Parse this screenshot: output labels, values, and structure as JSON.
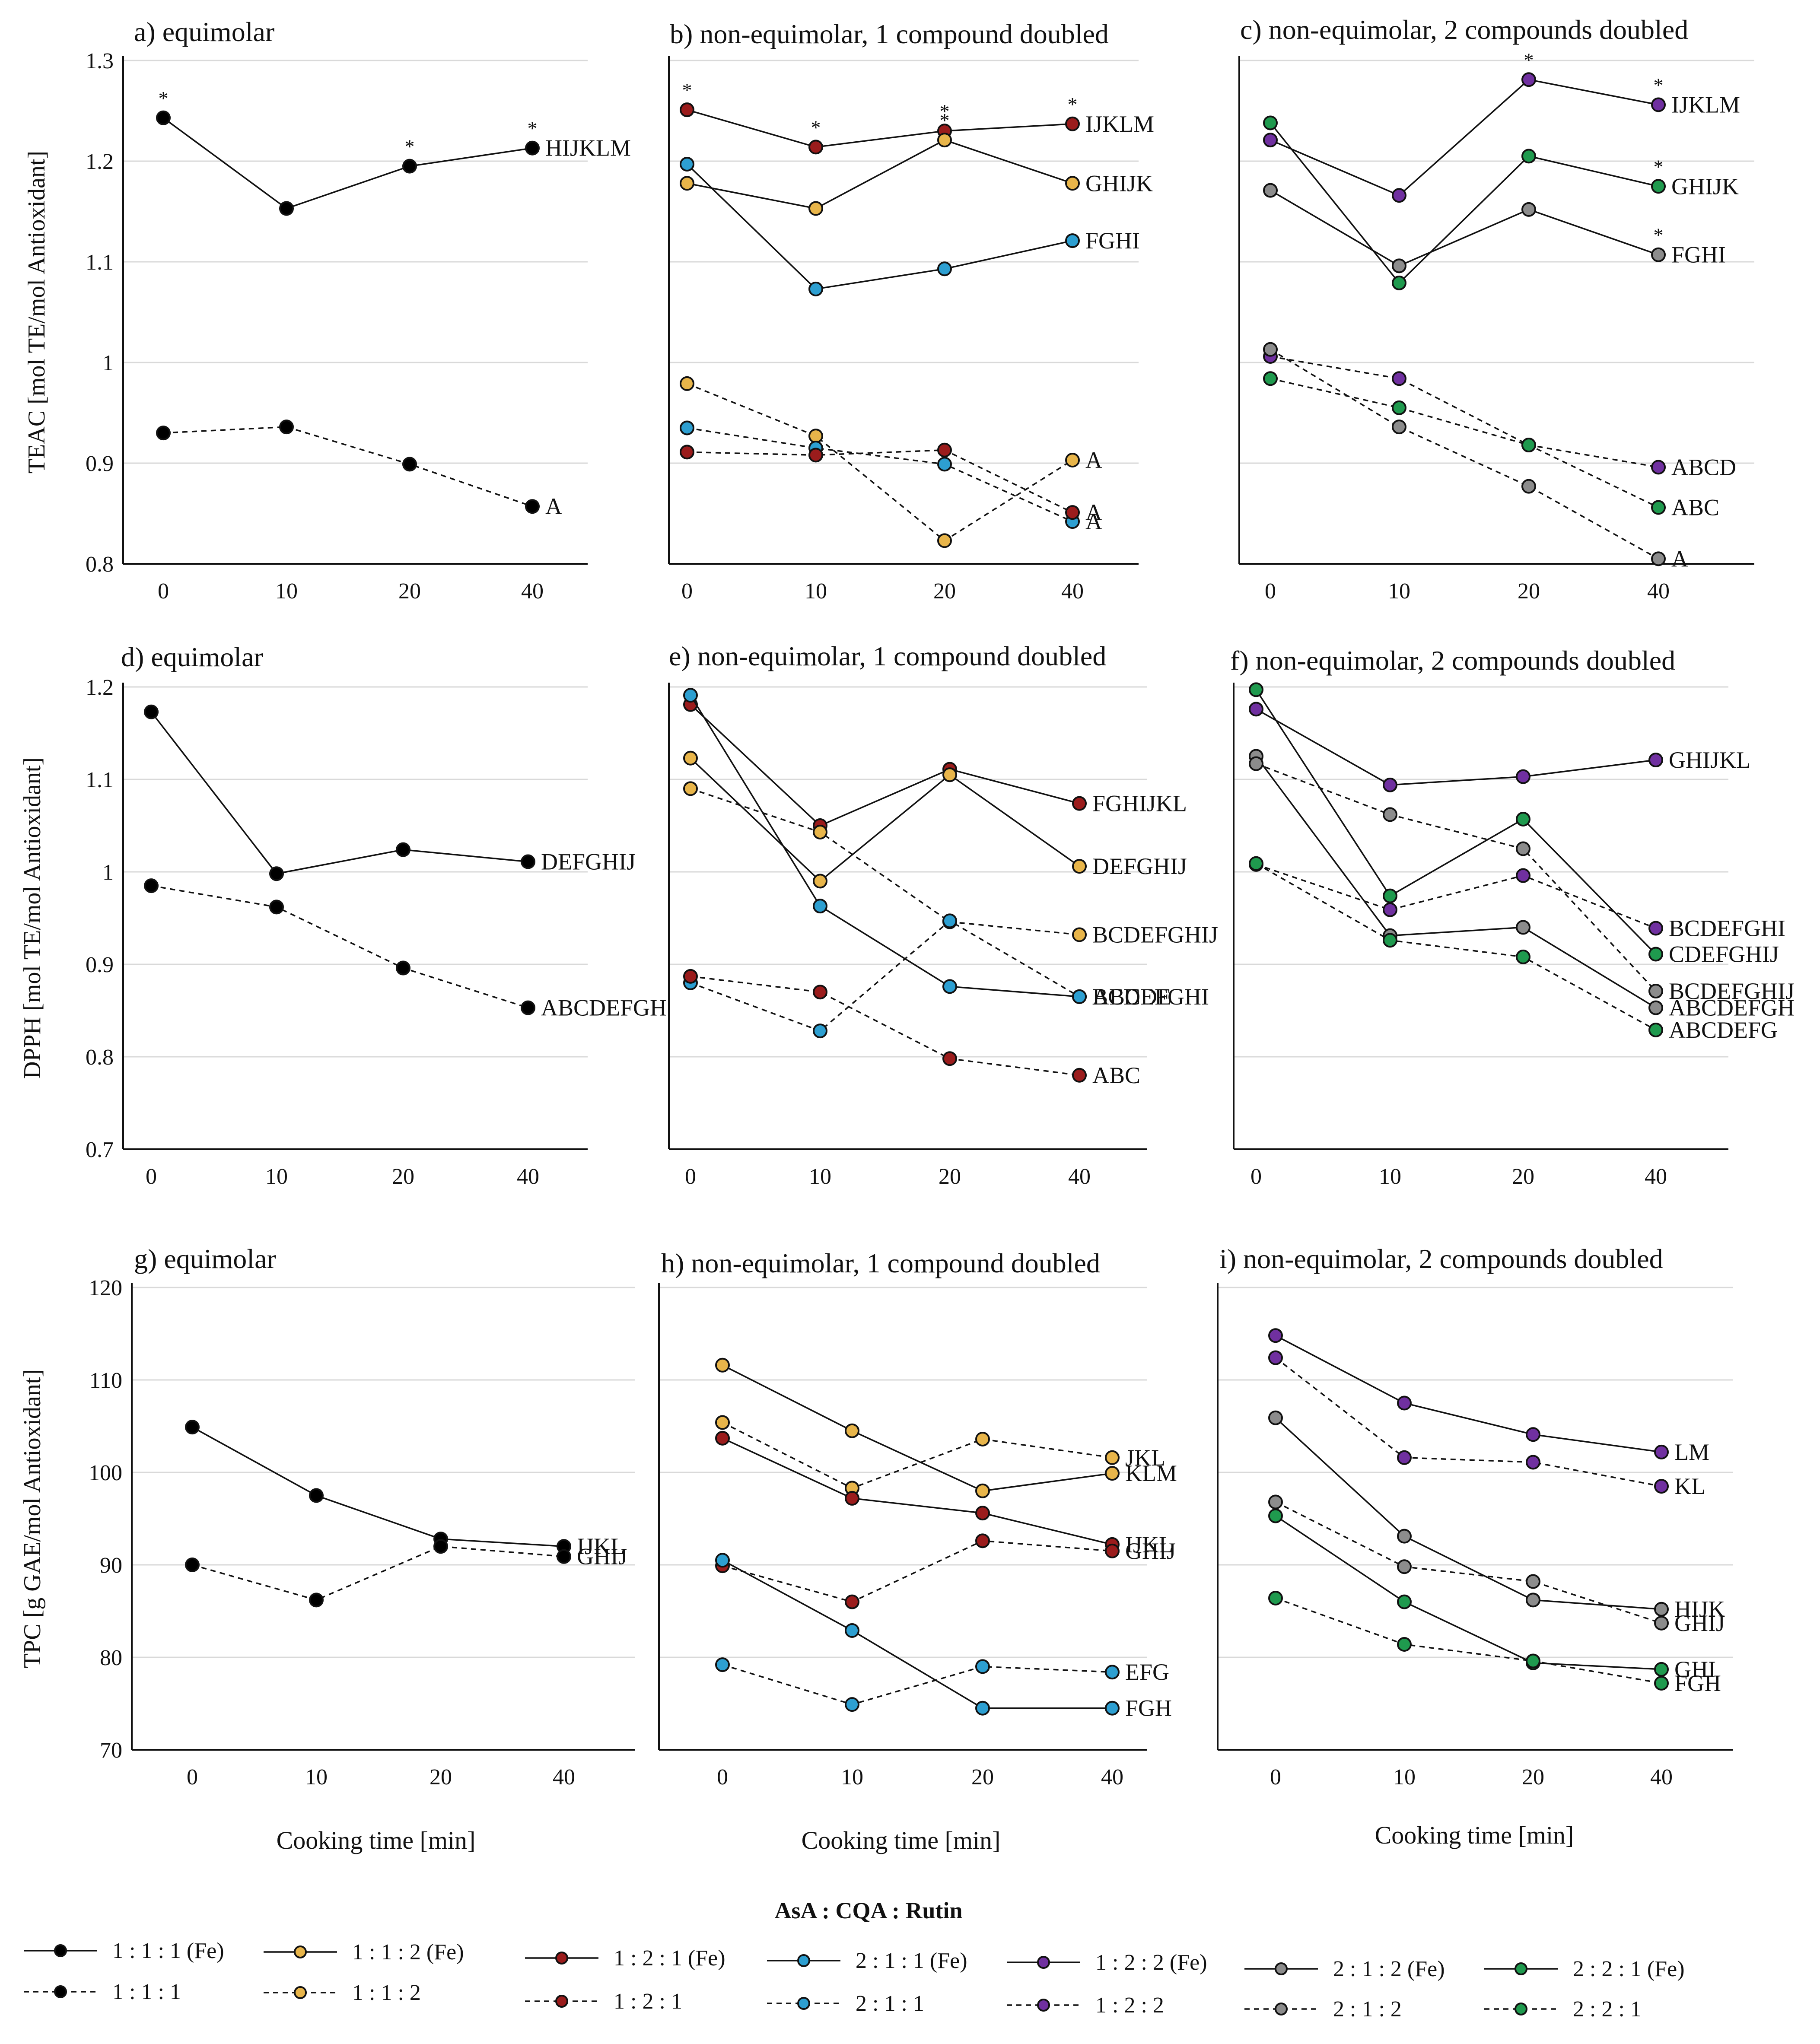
{
  "figure": {
    "x_axis_title": "Cooking time [min]",
    "legend_title": "AsA : CQA : Rutin"
  },
  "series_styles": {
    "111": {
      "color": "#000000",
      "fe_label": "1 : 1 : 1 (Fe)",
      "label": "1 : 1 : 1"
    },
    "112": {
      "color": "#e8b54a",
      "fe_label": "1 : 1 : 2 (Fe)",
      "label": "1 : 1 : 2"
    },
    "121": {
      "color": "#9b1c1c",
      "fe_label": "1 : 2 : 1 (Fe)",
      "label": "1 : 2 : 1"
    },
    "211": {
      "color": "#2d9fd1",
      "fe_label": "2 : 1 : 1 (Fe)",
      "label": "2 : 1 : 1"
    },
    "122": {
      "color": "#7030a0",
      "fe_label": "1 : 2 : 2 (Fe)",
      "label": "1 : 2 : 2"
    },
    "212": {
      "color": "#8c8c8c",
      "fe_label": "2 : 1 : 2 (Fe)",
      "label": "2 : 1 : 2"
    },
    "221": {
      "color": "#1f9a4e",
      "fe_label": "2 : 2 : 1 (Fe)",
      "label": "2 : 2 : 1"
    }
  },
  "legend_order": [
    "111",
    "112",
    "121",
    "211",
    "122",
    "212",
    "221"
  ],
  "chart_data": [
    {
      "id": "a",
      "type": "line",
      "title": "a) equimolar",
      "ylabel": "TEAC [mol TE/mol Antioxidant]",
      "categories": [
        "0",
        "10",
        "20",
        "40"
      ],
      "ylim": [
        0.8,
        1.3
      ],
      "yticks": [
        "0.8",
        "0.9",
        "1",
        "1.1",
        "1.2",
        "1.3"
      ],
      "grid": true,
      "series": [
        {
          "key": "111",
          "fe": true,
          "values": [
            1.243,
            1.153,
            1.195,
            1.213
          ],
          "stars": [
            true,
            false,
            true,
            true
          ],
          "end_label": "HIJKLM"
        },
        {
          "key": "111",
          "fe": false,
          "values": [
            0.93,
            0.936,
            0.899,
            0.857
          ],
          "end_label": "A"
        }
      ]
    },
    {
      "id": "b",
      "type": "line",
      "title": "b) non-equimolar, 1 compound doubled",
      "ylabel": "",
      "categories": [
        "0",
        "10",
        "20",
        "40"
      ],
      "ylim": [
        0.8,
        1.3
      ],
      "yticks": [],
      "grid": true,
      "series": [
        {
          "key": "121",
          "fe": true,
          "values": [
            1.251,
            1.214,
            1.23,
            1.237
          ],
          "stars": [
            true,
            true,
            true,
            true
          ],
          "end_label": "IJKLM"
        },
        {
          "key": "112",
          "fe": true,
          "values": [
            1.178,
            1.153,
            1.221,
            1.178
          ],
          "stars": [
            false,
            false,
            true,
            false
          ],
          "end_label": "GHIJK"
        },
        {
          "key": "211",
          "fe": true,
          "values": [
            1.197,
            1.073,
            1.093,
            1.121
          ],
          "end_label": "FGHI"
        },
        {
          "key": "112",
          "fe": false,
          "values": [
            0.979,
            0.927,
            0.823,
            0.903
          ],
          "end_label": "A"
        },
        {
          "key": "211",
          "fe": false,
          "values": [
            0.935,
            0.915,
            0.899,
            0.842
          ],
          "end_label": "A"
        },
        {
          "key": "121",
          "fe": false,
          "values": [
            0.911,
            0.908,
            0.913,
            0.851
          ],
          "end_label": "A"
        }
      ]
    },
    {
      "id": "c",
      "type": "line",
      "title": "c) non-equimolar, 2 compounds doubled",
      "ylabel": "",
      "categories": [
        "0",
        "10",
        "20",
        "40"
      ],
      "ylim": [
        0.8,
        1.3
      ],
      "yticks": [],
      "grid": true,
      "series": [
        {
          "key": "122",
          "fe": true,
          "values": [
            1.221,
            1.166,
            1.281,
            1.256
          ],
          "stars": [
            false,
            false,
            true,
            true
          ],
          "end_label": "IJKLM"
        },
        {
          "key": "221",
          "fe": true,
          "values": [
            1.238,
            1.079,
            1.205,
            1.175
          ],
          "stars": [
            false,
            false,
            false,
            true
          ],
          "end_label": "GHIJK"
        },
        {
          "key": "212",
          "fe": true,
          "values": [
            1.171,
            1.096,
            1.152,
            1.107
          ],
          "stars": [
            false,
            false,
            false,
            true
          ],
          "end_label": "FGHI"
        },
        {
          "key": "122",
          "fe": false,
          "values": [
            1.006,
            0.984,
            0.918,
            0.896
          ],
          "end_label": "ABCD"
        },
        {
          "key": "221",
          "fe": false,
          "values": [
            0.984,
            0.955,
            0.918,
            0.856
          ],
          "end_label": "ABC"
        },
        {
          "key": "212",
          "fe": false,
          "values": [
            1.013,
            0.936,
            0.877,
            0.805
          ],
          "end_label": "A"
        }
      ]
    },
    {
      "id": "d",
      "type": "line",
      "title": "d) equimolar",
      "ylabel": "DPPH [mol TE/mol Antioxidant]",
      "categories": [
        "0",
        "10",
        "20",
        "40"
      ],
      "ylim": [
        0.7,
        1.2
      ],
      "yticks": [
        "0.7",
        "0.8",
        "0.9",
        "1",
        "1.1",
        "1.2"
      ],
      "grid": true,
      "series": [
        {
          "key": "111",
          "fe": true,
          "values": [
            1.173,
            0.998,
            1.024,
            1.011
          ],
          "end_label": "DEFGHIJ"
        },
        {
          "key": "111",
          "fe": false,
          "values": [
            0.985,
            0.962,
            0.896,
            0.853
          ],
          "end_label": "ABCDEFGH"
        }
      ]
    },
    {
      "id": "e",
      "type": "line",
      "title": "e) non-equimolar, 1 compound doubled",
      "ylabel": "",
      "categories": [
        "0",
        "10",
        "20",
        "40"
      ],
      "ylim": [
        0.7,
        1.2
      ],
      "yticks": [],
      "grid": true,
      "series": [
        {
          "key": "121",
          "fe": true,
          "values": [
            1.181,
            1.05,
            1.111,
            1.074
          ],
          "end_label": "FGHIJKL"
        },
        {
          "key": "112",
          "fe": true,
          "values": [
            1.123,
            0.99,
            1.105,
            1.006
          ],
          "end_label": "DEFGHIJ"
        },
        {
          "key": "211",
          "fe": true,
          "values": [
            1.191,
            0.963,
            0.876,
            0.865
          ],
          "end_label": "BCDEFGHI"
        },
        {
          "key": "112",
          "fe": false,
          "values": [
            1.09,
            1.043,
            0.946,
            0.932
          ],
          "end_label": "BCDEFGHIJ"
        },
        {
          "key": "211",
          "fe": false,
          "values": [
            0.88,
            0.828,
            0.947,
            0.865
          ],
          "end_label": "ABCDE"
        },
        {
          "key": "121",
          "fe": false,
          "values": [
            0.887,
            0.87,
            0.798,
            0.78
          ],
          "end_label": "ABC"
        }
      ]
    },
    {
      "id": "f",
      "type": "line",
      "title": "f) non-equimolar, 2 compounds doubled",
      "ylabel": "",
      "categories": [
        "0",
        "10",
        "20",
        "40"
      ],
      "ylim": [
        0.7,
        1.2
      ],
      "yticks": [],
      "grid": true,
      "series": [
        {
          "key": "122",
          "fe": true,
          "values": [
            1.176,
            1.094,
            1.103,
            1.121
          ],
          "end_label": "GHIJKL"
        },
        {
          "key": "221",
          "fe": true,
          "values": [
            1.197,
            0.974,
            1.057,
            0.911
          ],
          "end_label": "CDEFGHIJ"
        },
        {
          "key": "212",
          "fe": true,
          "values": [
            1.125,
            0.931,
            0.94,
            0.853
          ],
          "end_label": "ABCDEFGH"
        },
        {
          "key": "122",
          "fe": false,
          "values": [
            1.008,
            0.959,
            0.996,
            0.939
          ],
          "end_label": "BCDEFGHI"
        },
        {
          "key": "212",
          "fe": false,
          "values": [
            1.117,
            1.062,
            1.025,
            0.871
          ],
          "end_label": "BCDEFGHIJ"
        },
        {
          "key": "221",
          "fe": false,
          "values": [
            1.009,
            0.926,
            0.908,
            0.829
          ],
          "end_label": "ABCDEFG"
        }
      ]
    },
    {
      "id": "g",
      "type": "line",
      "title": "g) equimolar",
      "ylabel": "TPC [g GAE/mol Antioxidant]",
      "categories": [
        "0",
        "10",
        "20",
        "40"
      ],
      "ylim": [
        70,
        120
      ],
      "yticks": [
        "70",
        "80",
        "90",
        "100",
        "110",
        "120"
      ],
      "grid": true,
      "series": [
        {
          "key": "111",
          "fe": true,
          "values": [
            104.9,
            97.5,
            92.8,
            92.0
          ],
          "end_label": "IJKL"
        },
        {
          "key": "111",
          "fe": false,
          "values": [
            90.0,
            86.2,
            92.0,
            90.9
          ],
          "end_label": "GHIJ"
        }
      ]
    },
    {
      "id": "h",
      "type": "line",
      "title": "h) non-equimolar, 1 compound doubled",
      "ylabel": "",
      "categories": [
        "0",
        "10",
        "20",
        "40"
      ],
      "ylim": [
        70,
        120
      ],
      "yticks": [],
      "grid": true,
      "series": [
        {
          "key": "112",
          "fe": false,
          "values": [
            105.4,
            98.3,
            103.6,
            101.6
          ],
          "end_label": "JKL"
        },
        {
          "key": "112",
          "fe": true,
          "values": [
            111.6,
            104.5,
            98.0,
            99.9
          ],
          "end_label": "KLM"
        },
        {
          "key": "121",
          "fe": true,
          "values": [
            103.7,
            97.2,
            95.6,
            92.2
          ],
          "end_label": "IJKL"
        },
        {
          "key": "121",
          "fe": false,
          "values": [
            89.9,
            86.0,
            92.6,
            91.5
          ],
          "end_label": "GHIJ"
        },
        {
          "key": "211",
          "fe": false,
          "values": [
            79.2,
            74.9,
            79.0,
            78.4
          ],
          "end_label": "EFG"
        },
        {
          "key": "211",
          "fe": true,
          "values": [
            90.5,
            82.9,
            74.5,
            74.5
          ],
          "end_label": "FGH"
        }
      ]
    },
    {
      "id": "i",
      "type": "line",
      "title": "i) non-equimolar, 2 compounds doubled",
      "ylabel": "",
      "categories": [
        "0",
        "10",
        "20",
        "40"
      ],
      "ylim": [
        70,
        120
      ],
      "yticks": [],
      "grid": true,
      "series": [
        {
          "key": "122",
          "fe": true,
          "values": [
            114.8,
            107.5,
            104.1,
            102.2
          ],
          "end_label": "LM"
        },
        {
          "key": "122",
          "fe": false,
          "values": [
            112.4,
            101.6,
            101.1,
            98.5
          ],
          "end_label": "KL"
        },
        {
          "key": "212",
          "fe": true,
          "values": [
            105.9,
            93.1,
            86.2,
            85.2
          ],
          "end_label": "HIJK"
        },
        {
          "key": "212",
          "fe": false,
          "values": [
            96.8,
            89.8,
            88.2,
            83.7
          ],
          "end_label": "GHIJ"
        },
        {
          "key": "221",
          "fe": true,
          "values": [
            95.3,
            86.0,
            79.4,
            78.7
          ],
          "end_label": "GHI"
        },
        {
          "key": "221",
          "fe": false,
          "values": [
            86.4,
            81.4,
            79.6,
            77.2
          ],
          "end_label": "FGH"
        }
      ]
    }
  ]
}
